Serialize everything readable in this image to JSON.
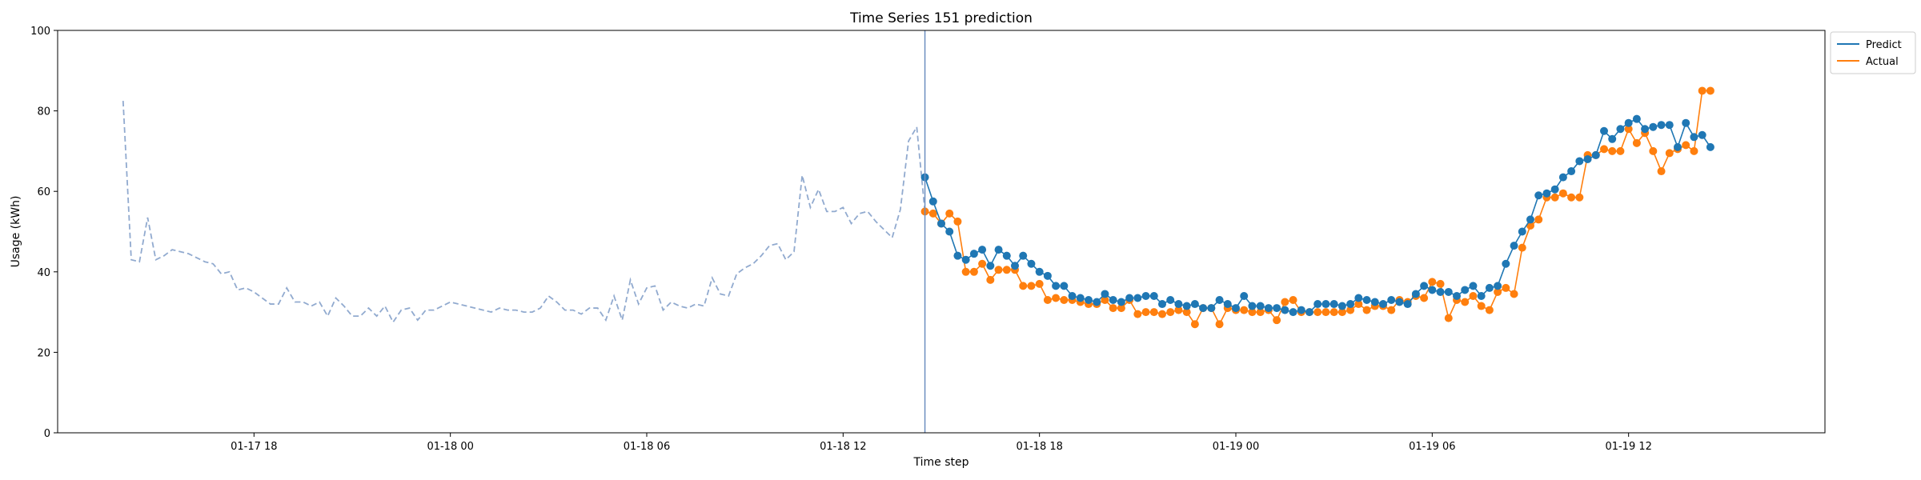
{
  "chart_data": {
    "type": "line",
    "title": "Time Series 151 prediction",
    "xlabel": "Time step",
    "ylabel": "Usage (kWh)",
    "ylim": [
      0,
      100
    ],
    "yticks": [
      0,
      20,
      40,
      60,
      80,
      100
    ],
    "xlim": [
      "2024-01-17 12:00",
      "2024-01-19 18:00"
    ],
    "xticks": [
      {
        "label": "01-17 18",
        "x": "2024-01-17 18:00"
      },
      {
        "label": "01-18 00",
        "x": "2024-01-18 00:00"
      },
      {
        "label": "01-18 06",
        "x": "2024-01-18 06:00"
      },
      {
        "label": "01-18 12",
        "x": "2024-01-18 12:00"
      },
      {
        "label": "01-18 18",
        "x": "2024-01-18 18:00"
      },
      {
        "label": "01-19 00",
        "x": "2024-01-19 00:00"
      },
      {
        "label": "01-19 06",
        "x": "2024-01-19 06:00"
      },
      {
        "label": "01-19 12",
        "x": "2024-01-19 12:00"
      }
    ],
    "legend_position": "outside-top-right",
    "grid": false,
    "split_x": "2024-01-18 14:30",
    "series": [
      {
        "name": "Predict",
        "color": "#1f77b4",
        "style": "solid-markers",
        "x": [
          "2024-01-18 14:30",
          "2024-01-18 14:45",
          "2024-01-18 15:00",
          "2024-01-18 15:15",
          "2024-01-18 15:30",
          "2024-01-18 15:45",
          "2024-01-18 16:00",
          "2024-01-18 16:15",
          "2024-01-18 16:30",
          "2024-01-18 16:45",
          "2024-01-18 17:00",
          "2024-01-18 17:15",
          "2024-01-18 17:30",
          "2024-01-18 17:45",
          "2024-01-18 18:00",
          "2024-01-18 18:15",
          "2024-01-18 18:30",
          "2024-01-18 18:45",
          "2024-01-18 19:00",
          "2024-01-18 19:15",
          "2024-01-18 19:30",
          "2024-01-18 19:45",
          "2024-01-18 20:00",
          "2024-01-18 20:15",
          "2024-01-18 20:30",
          "2024-01-18 20:45",
          "2024-01-18 21:00",
          "2024-01-18 21:15",
          "2024-01-18 21:30",
          "2024-01-18 21:45",
          "2024-01-18 22:00",
          "2024-01-18 22:15",
          "2024-01-18 22:30",
          "2024-01-18 22:45",
          "2024-01-18 23:00",
          "2024-01-18 23:15",
          "2024-01-18 23:30",
          "2024-01-18 23:45",
          "2024-01-19 00:00",
          "2024-01-19 00:15",
          "2024-01-19 00:30",
          "2024-01-19 00:45",
          "2024-01-19 01:00",
          "2024-01-19 01:15",
          "2024-01-19 01:30",
          "2024-01-19 01:45",
          "2024-01-19 02:00",
          "2024-01-19 02:15",
          "2024-01-19 02:30",
          "2024-01-19 02:45",
          "2024-01-19 03:00",
          "2024-01-19 03:15",
          "2024-01-19 03:30",
          "2024-01-19 03:45",
          "2024-01-19 04:00",
          "2024-01-19 04:15",
          "2024-01-19 04:30",
          "2024-01-19 04:45",
          "2024-01-19 05:00",
          "2024-01-19 05:15",
          "2024-01-19 05:30",
          "2024-01-19 05:45",
          "2024-01-19 06:00",
          "2024-01-19 06:15",
          "2024-01-19 06:30",
          "2024-01-19 06:45",
          "2024-01-19 07:00",
          "2024-01-19 07:15",
          "2024-01-19 07:30",
          "2024-01-19 07:45",
          "2024-01-19 08:00",
          "2024-01-19 08:15",
          "2024-01-19 08:30",
          "2024-01-19 08:45",
          "2024-01-19 09:00",
          "2024-01-19 09:15",
          "2024-01-19 09:30",
          "2024-01-19 09:45",
          "2024-01-19 10:00",
          "2024-01-19 10:15",
          "2024-01-19 10:30",
          "2024-01-19 10:45",
          "2024-01-19 11:00",
          "2024-01-19 11:15",
          "2024-01-19 11:30",
          "2024-01-19 11:45",
          "2024-01-19 12:00",
          "2024-01-19 12:15",
          "2024-01-19 12:30",
          "2024-01-19 12:45",
          "2024-01-19 13:00",
          "2024-01-19 13:15",
          "2024-01-19 13:30",
          "2024-01-19 13:45",
          "2024-01-19 14:00",
          "2024-01-19 14:15",
          "2024-01-19 14:30"
        ],
        "values": [
          63.5,
          57.5,
          52,
          50,
          44,
          43,
          44.5,
          45.5,
          41.5,
          45.5,
          44,
          41.5,
          44,
          42,
          40,
          39,
          36.5,
          36.5,
          34,
          33.5,
          33,
          32.5,
          34.5,
          33,
          32.5,
          33.5,
          33.5,
          34,
          34,
          32,
          33,
          32,
          31.5,
          32,
          31,
          31,
          33,
          32,
          31,
          34,
          31.5,
          31.5,
          31,
          31,
          30.5,
          30,
          30.5,
          30,
          32,
          32,
          32,
          31.5,
          32,
          33.5,
          33,
          32.5,
          32,
          33,
          32.5,
          32,
          34.5,
          36.5,
          35.5,
          35,
          35,
          34,
          35.5,
          36.5,
          34,
          36,
          36.5,
          42,
          46.5,
          50,
          53,
          59,
          59.5,
          60.5,
          63.5,
          65,
          67.5,
          68,
          69,
          75,
          73,
          75.5,
          77,
          78,
          75.5,
          76,
          76.5,
          76.5,
          71,
          77,
          73.5,
          74,
          71
        ]
      },
      {
        "name": "Actual",
        "color": "#ff7f0e",
        "style": "solid-markers",
        "x": [
          "2024-01-18 14:30",
          "2024-01-18 14:45",
          "2024-01-18 15:00",
          "2024-01-18 15:15",
          "2024-01-18 15:30",
          "2024-01-18 15:45",
          "2024-01-18 16:00",
          "2024-01-18 16:15",
          "2024-01-18 16:30",
          "2024-01-18 16:45",
          "2024-01-18 17:00",
          "2024-01-18 17:15",
          "2024-01-18 17:30",
          "2024-01-18 17:45",
          "2024-01-18 18:00",
          "2024-01-18 18:15",
          "2024-01-18 18:30",
          "2024-01-18 18:45",
          "2024-01-18 19:00",
          "2024-01-18 19:15",
          "2024-01-18 19:30",
          "2024-01-18 19:45",
          "2024-01-18 20:00",
          "2024-01-18 20:15",
          "2024-01-18 20:30",
          "2024-01-18 20:45",
          "2024-01-18 21:00",
          "2024-01-18 21:15",
          "2024-01-18 21:30",
          "2024-01-18 21:45",
          "2024-01-18 22:00",
          "2024-01-18 22:15",
          "2024-01-18 22:30",
          "2024-01-18 22:45",
          "2024-01-18 23:00",
          "2024-01-18 23:15",
          "2024-01-18 23:30",
          "2024-01-18 23:45",
          "2024-01-19 00:00",
          "2024-01-19 00:15",
          "2024-01-19 00:30",
          "2024-01-19 00:45",
          "2024-01-19 01:00",
          "2024-01-19 01:15",
          "2024-01-19 01:30",
          "2024-01-19 01:45",
          "2024-01-19 02:00",
          "2024-01-19 02:15",
          "2024-01-19 02:30",
          "2024-01-19 02:45",
          "2024-01-19 03:00",
          "2024-01-19 03:15",
          "2024-01-19 03:30",
          "2024-01-19 03:45",
          "2024-01-19 04:00",
          "2024-01-19 04:15",
          "2024-01-19 04:30",
          "2024-01-19 04:45",
          "2024-01-19 05:00",
          "2024-01-19 05:15",
          "2024-01-19 05:30",
          "2024-01-19 05:45",
          "2024-01-19 06:00",
          "2024-01-19 06:15",
          "2024-01-19 06:30",
          "2024-01-19 06:45",
          "2024-01-19 07:00",
          "2024-01-19 07:15",
          "2024-01-19 07:30",
          "2024-01-19 07:45",
          "2024-01-19 08:00",
          "2024-01-19 08:15",
          "2024-01-19 08:30",
          "2024-01-19 08:45",
          "2024-01-19 09:00",
          "2024-01-19 09:15",
          "2024-01-19 09:30",
          "2024-01-19 09:45",
          "2024-01-19 10:00",
          "2024-01-19 10:15",
          "2024-01-19 10:30",
          "2024-01-19 10:45",
          "2024-01-19 11:00",
          "2024-01-19 11:15",
          "2024-01-19 11:30",
          "2024-01-19 11:45",
          "2024-01-19 12:00",
          "2024-01-19 12:15",
          "2024-01-19 12:30",
          "2024-01-19 12:45",
          "2024-01-19 13:00",
          "2024-01-19 13:15",
          "2024-01-19 13:30",
          "2024-01-19 13:45",
          "2024-01-19 14:00",
          "2024-01-19 14:15",
          "2024-01-19 14:30"
        ],
        "values": [
          55,
          54.5,
          52,
          54.5,
          52.5,
          40,
          40,
          42,
          38,
          40.5,
          40.5,
          40.5,
          36.5,
          36.5,
          37,
          33,
          33.5,
          33,
          33,
          32.5,
          32,
          32,
          33,
          31,
          31,
          33,
          29.5,
          30,
          30,
          29.5,
          30,
          30.5,
          30,
          27,
          31,
          31,
          27,
          31,
          30.5,
          30.5,
          30,
          30,
          30.5,
          28,
          32.5,
          33,
          30,
          30,
          30,
          30,
          30,
          30,
          30.5,
          32,
          30.5,
          31.5,
          31.5,
          30.5,
          33,
          32.5,
          34,
          33.5,
          37.5,
          37,
          28.5,
          33,
          32.5,
          34,
          31.5,
          30.5,
          35,
          36,
          34.5,
          46,
          51.5,
          53,
          58.5,
          58.5,
          59.5,
          58.5,
          58.5,
          69,
          69,
          70.5,
          70,
          70,
          75.5,
          72,
          74.5,
          70,
          65,
          69.5,
          70.5,
          71.5,
          70,
          85,
          85
        ]
      },
      {
        "name": "",
        "color": "#6c8ebf",
        "style": "dashed",
        "x": [
          "2024-01-17 14:00",
          "2024-01-17 14:15",
          "2024-01-17 14:30",
          "2024-01-17 14:45",
          "2024-01-17 15:00",
          "2024-01-17 15:15",
          "2024-01-17 15:30",
          "2024-01-17 15:45",
          "2024-01-17 16:00",
          "2024-01-17 16:15",
          "2024-01-17 16:30",
          "2024-01-17 16:45",
          "2024-01-17 17:00",
          "2024-01-17 17:15",
          "2024-01-17 17:30",
          "2024-01-17 17:45",
          "2024-01-17 18:00",
          "2024-01-17 18:15",
          "2024-01-17 18:30",
          "2024-01-17 18:45",
          "2024-01-17 19:00",
          "2024-01-17 19:15",
          "2024-01-17 19:30",
          "2024-01-17 19:45",
          "2024-01-17 20:00",
          "2024-01-17 20:15",
          "2024-01-17 20:30",
          "2024-01-17 20:45",
          "2024-01-17 21:00",
          "2024-01-17 21:15",
          "2024-01-17 21:30",
          "2024-01-17 21:45",
          "2024-01-17 22:00",
          "2024-01-17 22:15",
          "2024-01-17 22:30",
          "2024-01-17 22:45",
          "2024-01-17 23:00",
          "2024-01-17 23:15",
          "2024-01-17 23:30",
          "2024-01-17 23:45",
          "2024-01-18 00:00",
          "2024-01-18 00:15",
          "2024-01-18 00:30",
          "2024-01-18 00:45",
          "2024-01-18 01:00",
          "2024-01-18 01:15",
          "2024-01-18 01:30",
          "2024-01-18 01:45",
          "2024-01-18 02:00",
          "2024-01-18 02:15",
          "2024-01-18 02:30",
          "2024-01-18 02:45",
          "2024-01-18 03:00",
          "2024-01-18 03:15",
          "2024-01-18 03:30",
          "2024-01-18 03:45",
          "2024-01-18 04:00",
          "2024-01-18 04:15",
          "2024-01-18 04:30",
          "2024-01-18 04:45",
          "2024-01-18 05:00",
          "2024-01-18 05:15",
          "2024-01-18 05:30",
          "2024-01-18 05:45",
          "2024-01-18 06:00",
          "2024-01-18 06:15",
          "2024-01-18 06:30",
          "2024-01-18 06:45",
          "2024-01-18 07:00",
          "2024-01-18 07:15",
          "2024-01-18 07:30",
          "2024-01-18 07:45",
          "2024-01-18 08:00",
          "2024-01-18 08:15",
          "2024-01-18 08:30",
          "2024-01-18 08:45",
          "2024-01-18 09:00",
          "2024-01-18 09:15",
          "2024-01-18 09:30",
          "2024-01-18 09:45",
          "2024-01-18 10:00",
          "2024-01-18 10:15",
          "2024-01-18 10:30",
          "2024-01-18 10:45",
          "2024-01-18 11:00",
          "2024-01-18 11:15",
          "2024-01-18 11:30",
          "2024-01-18 11:45",
          "2024-01-18 12:00",
          "2024-01-18 12:15",
          "2024-01-18 12:30",
          "2024-01-18 12:45",
          "2024-01-18 13:00",
          "2024-01-18 13:15",
          "2024-01-18 13:30",
          "2024-01-18 13:45",
          "2024-01-18 14:00",
          "2024-01-18 14:15",
          "2024-01-18 14:30"
        ],
        "values": [
          82.5,
          43,
          42.5,
          53.5,
          43,
          44,
          45.5,
          45,
          44.5,
          43.5,
          42.5,
          42,
          39.5,
          40,
          35.5,
          36,
          35,
          33.5,
          32,
          32,
          36,
          32.5,
          32.5,
          31.5,
          32.5,
          29,
          33.5,
          31.5,
          29,
          29,
          31,
          29,
          31.5,
          27.5,
          30.5,
          31,
          28,
          30.5,
          30.5,
          31.5,
          32.5,
          32,
          31.5,
          31,
          30.5,
          30,
          31,
          30.5,
          30.5,
          30,
          30,
          31,
          34,
          32.5,
          30.5,
          30.5,
          29.5,
          31,
          31,
          28,
          34,
          28,
          38,
          32,
          36,
          36.5,
          30.5,
          32.5,
          31.5,
          31,
          32,
          31.5,
          38.5,
          34.5,
          34,
          39.5,
          41,
          42,
          44,
          46.5,
          47,
          43,
          45,
          64,
          56,
          60.5,
          55,
          55,
          56,
          52,
          54.5,
          55,
          52.5,
          50.5,
          48.5,
          55.5,
          72.5,
          76,
          55
        ]
      }
    ]
  }
}
